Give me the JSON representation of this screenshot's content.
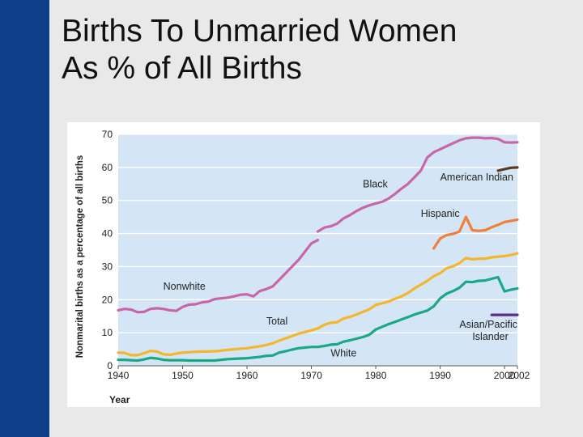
{
  "slide": {
    "title_line1": "Births To Unmarried Women",
    "title_line2": "As % of All Births"
  },
  "colors": {
    "side_bar": "#0e3e8a",
    "slide_background": "#e9e9e9",
    "plot_background": "#d4e6f5",
    "gridline": "#ffffff"
  },
  "chart_data": {
    "type": "line",
    "title": "",
    "xlabel": "Year",
    "ylabel": "Nonmarital births as a percentage of all births",
    "xlim": [
      1940,
      2002
    ],
    "ylim": [
      0,
      70
    ],
    "x_ticks": [
      1940,
      1950,
      1960,
      1970,
      1980,
      1990,
      2000,
      2002
    ],
    "y_ticks": [
      0,
      10,
      20,
      30,
      40,
      50,
      60,
      70
    ],
    "grid": true,
    "legend": "labels placed beside each line",
    "series": [
      {
        "name": "Nonwhite",
        "color": "#c766a8",
        "points": [
          [
            1940,
            16.8
          ],
          [
            1941,
            17.2
          ],
          [
            1942,
            17.0
          ],
          [
            1943,
            16.2
          ],
          [
            1944,
            16.3
          ],
          [
            1945,
            17.2
          ],
          [
            1946,
            17.4
          ],
          [
            1947,
            17.2
          ],
          [
            1948,
            16.8
          ],
          [
            1949,
            16.6
          ],
          [
            1950,
            17.8
          ],
          [
            1951,
            18.5
          ],
          [
            1952,
            18.6
          ],
          [
            1953,
            19.2
          ],
          [
            1954,
            19.4
          ],
          [
            1955,
            20.2
          ],
          [
            1956,
            20.4
          ],
          [
            1957,
            20.6
          ],
          [
            1958,
            21.0
          ],
          [
            1959,
            21.5
          ],
          [
            1960,
            21.6
          ],
          [
            1961,
            21.0
          ],
          [
            1962,
            22.6
          ],
          [
            1963,
            23.2
          ],
          [
            1964,
            24.0
          ],
          [
            1965,
            26.0
          ],
          [
            1966,
            28.0
          ],
          [
            1967,
            30.0
          ],
          [
            1968,
            32.0
          ],
          [
            1969,
            34.5
          ],
          [
            1970,
            37.0
          ],
          [
            1971,
            38.0
          ]
        ]
      },
      {
        "name": "Black",
        "color": "#c766a8",
        "points": [
          [
            1971,
            40.6
          ],
          [
            1972,
            41.8
          ],
          [
            1973,
            42.2
          ],
          [
            1974,
            43.0
          ],
          [
            1975,
            44.6
          ],
          [
            1976,
            45.6
          ],
          [
            1977,
            46.8
          ],
          [
            1978,
            47.8
          ],
          [
            1979,
            48.5
          ],
          [
            1980,
            49.1
          ],
          [
            1981,
            49.6
          ],
          [
            1982,
            50.6
          ],
          [
            1983,
            52.0
          ],
          [
            1984,
            53.6
          ],
          [
            1985,
            55.0
          ],
          [
            1986,
            57.0
          ],
          [
            1987,
            59.0
          ],
          [
            1988,
            63.0
          ],
          [
            1989,
            64.6
          ],
          [
            1990,
            65.5
          ],
          [
            1991,
            66.4
          ],
          [
            1992,
            67.3
          ],
          [
            1993,
            68.2
          ],
          [
            1994,
            68.8
          ],
          [
            1995,
            69.0
          ],
          [
            1996,
            69.0
          ],
          [
            1997,
            68.8
          ],
          [
            1998,
            68.9
          ],
          [
            1999,
            68.6
          ],
          [
            2000,
            67.6
          ],
          [
            2001,
            67.5
          ],
          [
            2002,
            67.6
          ]
        ]
      },
      {
        "name": "American Indian",
        "color": "#5a3a26",
        "points": [
          [
            1999,
            59.0
          ],
          [
            2000,
            59.5
          ],
          [
            2001,
            59.9
          ],
          [
            2002,
            60.0
          ]
        ]
      },
      {
        "name": "Hispanic",
        "color": "#ef7f3a",
        "points": [
          [
            1989,
            35.5
          ],
          [
            1990,
            38.5
          ],
          [
            1991,
            39.5
          ],
          [
            1992,
            39.9
          ],
          [
            1993,
            40.6
          ],
          [
            1994,
            45.0
          ],
          [
            1995,
            41.0
          ],
          [
            1996,
            40.8
          ],
          [
            1997,
            41.0
          ],
          [
            1998,
            41.9
          ],
          [
            1999,
            42.6
          ],
          [
            2000,
            43.5
          ],
          [
            2001,
            43.8
          ],
          [
            2002,
            44.2
          ]
        ]
      },
      {
        "name": "Total",
        "color": "#f3b62d",
        "points": [
          [
            1940,
            4.0
          ],
          [
            1941,
            3.9
          ],
          [
            1942,
            3.2
          ],
          [
            1943,
            3.2
          ],
          [
            1944,
            3.8
          ],
          [
            1945,
            4.5
          ],
          [
            1946,
            4.3
          ],
          [
            1947,
            3.5
          ],
          [
            1948,
            3.3
          ],
          [
            1949,
            3.7
          ],
          [
            1950,
            4.0
          ],
          [
            1951,
            4.1
          ],
          [
            1952,
            4.2
          ],
          [
            1953,
            4.3
          ],
          [
            1954,
            4.3
          ],
          [
            1955,
            4.4
          ],
          [
            1956,
            4.6
          ],
          [
            1957,
            4.8
          ],
          [
            1958,
            5.0
          ],
          [
            1959,
            5.2
          ],
          [
            1960,
            5.3
          ],
          [
            1961,
            5.6
          ],
          [
            1962,
            5.9
          ],
          [
            1963,
            6.3
          ],
          [
            1964,
            6.8
          ],
          [
            1965,
            7.6
          ],
          [
            1966,
            8.3
          ],
          [
            1967,
            9.0
          ],
          [
            1968,
            9.7
          ],
          [
            1969,
            10.2
          ],
          [
            1970,
            10.7
          ],
          [
            1971,
            11.3
          ],
          [
            1972,
            12.4
          ],
          [
            1973,
            13.0
          ],
          [
            1974,
            13.2
          ],
          [
            1975,
            14.3
          ],
          [
            1976,
            14.8
          ],
          [
            1977,
            15.5
          ],
          [
            1978,
            16.3
          ],
          [
            1979,
            17.1
          ],
          [
            1980,
            18.4
          ],
          [
            1981,
            18.9
          ],
          [
            1982,
            19.4
          ],
          [
            1983,
            20.3
          ],
          [
            1984,
            21.0
          ],
          [
            1985,
            22.0
          ],
          [
            1986,
            23.4
          ],
          [
            1987,
            24.5
          ],
          [
            1988,
            25.7
          ],
          [
            1989,
            27.1
          ],
          [
            1990,
            28.0
          ],
          [
            1991,
            29.5
          ],
          [
            1992,
            30.1
          ],
          [
            1993,
            31.0
          ],
          [
            1994,
            32.6
          ],
          [
            1995,
            32.2
          ],
          [
            1996,
            32.4
          ],
          [
            1997,
            32.4
          ],
          [
            1998,
            32.8
          ],
          [
            1999,
            33.0
          ],
          [
            2000,
            33.2
          ],
          [
            2001,
            33.5
          ],
          [
            2002,
            34.0
          ]
        ]
      },
      {
        "name": "White",
        "color": "#1aa886",
        "points": [
          [
            1940,
            1.8
          ],
          [
            1941,
            1.8
          ],
          [
            1942,
            1.7
          ],
          [
            1943,
            1.6
          ],
          [
            1944,
            1.9
          ],
          [
            1945,
            2.4
          ],
          [
            1946,
            2.2
          ],
          [
            1947,
            1.8
          ],
          [
            1948,
            1.7
          ],
          [
            1949,
            1.7
          ],
          [
            1950,
            1.7
          ],
          [
            1951,
            1.6
          ],
          [
            1952,
            1.6
          ],
          [
            1953,
            1.6
          ],
          [
            1954,
            1.6
          ],
          [
            1955,
            1.6
          ],
          [
            1956,
            1.8
          ],
          [
            1957,
            2.0
          ],
          [
            1958,
            2.1
          ],
          [
            1959,
            2.2
          ],
          [
            1960,
            2.3
          ],
          [
            1961,
            2.5
          ],
          [
            1962,
            2.7
          ],
          [
            1963,
            3.0
          ],
          [
            1964,
            3.1
          ],
          [
            1965,
            4.0
          ],
          [
            1966,
            4.4
          ],
          [
            1967,
            4.9
          ],
          [
            1968,
            5.3
          ],
          [
            1969,
            5.5
          ],
          [
            1970,
            5.7
          ],
          [
            1971,
            5.7
          ],
          [
            1972,
            6.0
          ],
          [
            1973,
            6.4
          ],
          [
            1974,
            6.5
          ],
          [
            1975,
            7.3
          ],
          [
            1976,
            7.7
          ],
          [
            1977,
            8.2
          ],
          [
            1978,
            8.7
          ],
          [
            1979,
            9.4
          ],
          [
            1980,
            11.0
          ],
          [
            1981,
            11.8
          ],
          [
            1982,
            12.6
          ],
          [
            1983,
            13.3
          ],
          [
            1984,
            14.0
          ],
          [
            1985,
            14.7
          ],
          [
            1986,
            15.5
          ],
          [
            1987,
            16.1
          ],
          [
            1988,
            16.7
          ],
          [
            1989,
            18.0
          ],
          [
            1990,
            20.4
          ],
          [
            1991,
            21.8
          ],
          [
            1992,
            22.6
          ],
          [
            1993,
            23.6
          ],
          [
            1994,
            25.4
          ],
          [
            1995,
            25.3
          ],
          [
            1996,
            25.7
          ],
          [
            1997,
            25.8
          ],
          [
            1998,
            26.3
          ],
          [
            1999,
            26.8
          ],
          [
            2000,
            22.5
          ],
          [
            2001,
            23.0
          ],
          [
            2002,
            23.4
          ]
        ]
      },
      {
        "name": "Asian/Pacific Islander",
        "color": "#5b2d8e",
        "points": [
          [
            1998,
            15.4
          ],
          [
            2002,
            15.4
          ]
        ]
      }
    ],
    "line_labels": [
      {
        "series": "Black",
        "text": "Black",
        "x": 1978,
        "y": 54
      },
      {
        "series": "American Indian",
        "text": "American Indian",
        "x": 1990,
        "y": 56
      },
      {
        "series": "Hispanic",
        "text": "Hispanic",
        "x": 1987,
        "y": 45
      },
      {
        "series": "Nonwhite",
        "text": "Nonwhite",
        "x": 1947,
        "y": 23
      },
      {
        "series": "Total",
        "text": "Total",
        "x": 1963,
        "y": 12.5
      },
      {
        "series": "Asian/Pacific Islander",
        "text": "Asian/Pacific",
        "x": 1993,
        "y": 11.5
      },
      {
        "series": "Asian/Pacific Islander",
        "text": "Islander",
        "x": 1995,
        "y": 7.8
      },
      {
        "series": "White",
        "text": "White",
        "x": 1973,
        "y": 2.8
      }
    ]
  }
}
